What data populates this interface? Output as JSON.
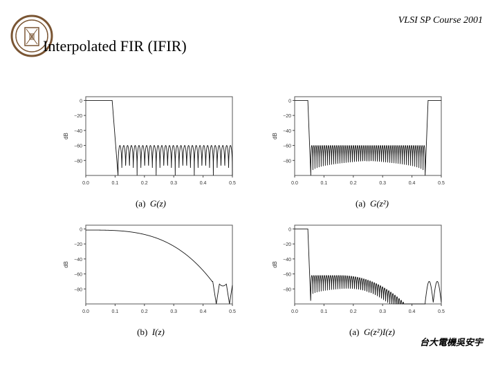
{
  "header": {
    "course": "VLSI SP Course 2001"
  },
  "title": "Interpolated FIR (IFIR)",
  "footer": {
    "author": "台大電機吳安宇"
  },
  "colors": {
    "line": "#111111",
    "frame": "#555555",
    "logo": "#7a5533"
  },
  "chart_data": [
    {
      "type": "line",
      "caption_prefix": "(a)",
      "caption_func": "G(z)",
      "ylabel": "dB",
      "xlim": [
        0,
        0.5
      ],
      "ylim": [
        -100,
        5
      ],
      "x_ticks": [
        "0.0",
        "0.1",
        "0.2",
        "0.3",
        "0.4",
        "0.5"
      ],
      "y_ticks": [
        "0",
        "−20",
        "−40",
        "−60",
        "−80"
      ],
      "series": [
        {
          "kind": "lowpass",
          "passband_edge": 0.09,
          "stopband_start": 0.11,
          "stopband_level": -60,
          "ripple_nulls": 30
        }
      ]
    },
    {
      "type": "line",
      "caption_prefix": "(a)",
      "caption_func": "G(z²)",
      "ylabel": "dB",
      "xlim": [
        0,
        0.5
      ],
      "ylim": [
        -100,
        5
      ],
      "x_ticks": [
        "0.0",
        "0.1",
        "0.2",
        "0.3",
        "0.4",
        "0.5"
      ],
      "y_ticks": [
        "0",
        "−20",
        "−40",
        "−60",
        "−80"
      ],
      "series": [
        {
          "kind": "image",
          "passband_edge": 0.045,
          "stopband_start": 0.055,
          "stopband_end": 0.445,
          "image_start": 0.455,
          "stopband_level": -60,
          "ripple_nulls": 55
        }
      ]
    },
    {
      "type": "line",
      "caption_prefix": "(b)",
      "caption_func": "I(z)",
      "ylabel": "dB",
      "xlim": [
        0,
        0.5
      ],
      "ylim": [
        -100,
        5
      ],
      "x_ticks": [
        "0.0",
        "0.1",
        "0.2",
        "0.3",
        "0.4",
        "0.5"
      ],
      "y_ticks": [
        "0",
        "−20",
        "−40",
        "−60",
        "−80"
      ],
      "series": [
        {
          "kind": "interp",
          "rolloff_end": 0.43,
          "nulls": [
            0.445,
            0.49
          ],
          "floor_level": -70
        }
      ]
    },
    {
      "type": "line",
      "caption_prefix": "(a)",
      "caption_func": "G(z²)I(z)",
      "ylabel": "dB",
      "xlim": [
        0,
        0.5
      ],
      "ylim": [
        -100,
        5
      ],
      "x_ticks": [
        "0.0",
        "0.1",
        "0.2",
        "0.3",
        "0.4",
        "0.5"
      ],
      "y_ticks": [
        "0",
        "−20",
        "−40",
        "−60",
        "−80"
      ],
      "series": [
        {
          "kind": "cascade",
          "passband_edge": 0.045,
          "stopband_start": 0.055,
          "stopband_level": -60,
          "ripple_nulls": 55
        }
      ]
    }
  ]
}
